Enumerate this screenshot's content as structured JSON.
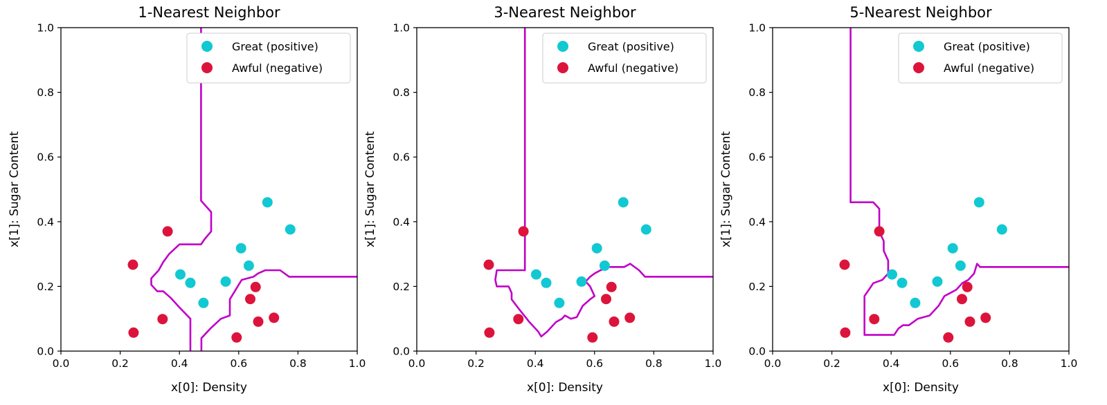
{
  "chart_data": [
    {
      "type": "scatter",
      "title": "1-Nearest Neighbor",
      "xlabel": "x[0]: Density",
      "ylabel": "x[1]: Sugar Content",
      "xlim": [
        0,
        1
      ],
      "ylim": [
        0,
        1
      ],
      "xticks": [
        "0.0",
        "0.2",
        "0.4",
        "0.6",
        "0.8",
        "1.0"
      ],
      "yticks": [
        "0.0",
        "0.2",
        "0.4",
        "0.6",
        "0.8",
        "1.0"
      ],
      "grid": false,
      "legend_position": "top-right",
      "series": [
        {
          "name": "Great (positive)",
          "color": "#12c8d2",
          "points": [
            [
              0.697,
              0.46
            ],
            [
              0.774,
              0.376
            ],
            [
              0.634,
              0.264
            ],
            [
              0.608,
              0.318
            ],
            [
              0.556,
              0.215
            ],
            [
              0.403,
              0.237
            ],
            [
              0.481,
              0.149
            ],
            [
              0.437,
              0.211
            ]
          ]
        },
        {
          "name": "Awful (negative)",
          "color": "#dc143c",
          "points": [
            [
              0.666,
              0.091
            ],
            [
              0.243,
              0.267
            ],
            [
              0.245,
              0.057
            ],
            [
              0.343,
              0.099
            ],
            [
              0.639,
              0.161
            ],
            [
              0.657,
              0.198
            ],
            [
              0.36,
              0.37
            ],
            [
              0.593,
              0.042
            ],
            [
              0.719,
              0.103
            ]
          ]
        }
      ],
      "decision_boundary": {
        "color": "#c000c8",
        "lines": [
          [
            [
              0.473,
              1.0
            ],
            [
              0.473,
              0.465
            ],
            [
              0.507,
              0.43
            ],
            [
              0.507,
              0.37
            ],
            [
              0.484,
              0.345
            ],
            [
              0.473,
              0.33
            ],
            [
              0.4,
              0.33
            ],
            [
              0.365,
              0.3
            ],
            [
              0.345,
              0.275
            ],
            [
              0.33,
              0.25
            ],
            [
              0.305,
              0.225
            ],
            [
              0.305,
              0.205
            ],
            [
              0.325,
              0.185
            ],
            [
              0.345,
              0.185
            ],
            [
              0.37,
              0.165
            ],
            [
              0.4,
              0.135
            ],
            [
              0.437,
              0.1
            ],
            [
              0.437,
              0.0
            ]
          ],
          [
            [
              0.474,
              0.0
            ],
            [
              0.474,
              0.04
            ],
            [
              0.505,
              0.07
            ],
            [
              0.54,
              0.1
            ],
            [
              0.57,
              0.11
            ],
            [
              0.57,
              0.16
            ],
            [
              0.59,
              0.19
            ],
            [
              0.61,
              0.22
            ],
            [
              0.65,
              0.23
            ],
            [
              0.665,
              0.24
            ],
            [
              0.69,
              0.25
            ],
            [
              0.74,
              0.25
            ],
            [
              0.77,
              0.23
            ],
            [
              1.0,
              0.23
            ]
          ]
        ]
      }
    },
    {
      "type": "scatter",
      "title": "3-Nearest Neighbor",
      "xlabel": "x[0]: Density",
      "ylabel": "x[1]: Sugar Content",
      "xlim": [
        0,
        1
      ],
      "ylim": [
        0,
        1
      ],
      "xticks": [
        "0.0",
        "0.2",
        "0.4",
        "0.6",
        "0.8",
        "1.0"
      ],
      "yticks": [
        "0.0",
        "0.2",
        "0.4",
        "0.6",
        "0.8",
        "1.0"
      ],
      "grid": false,
      "legend_position": "top-right",
      "series": [
        {
          "name": "Great (positive)",
          "color": "#12c8d2",
          "points": [
            [
              0.697,
              0.46
            ],
            [
              0.774,
              0.376
            ],
            [
              0.634,
              0.264
            ],
            [
              0.608,
              0.318
            ],
            [
              0.556,
              0.215
            ],
            [
              0.403,
              0.237
            ],
            [
              0.481,
              0.149
            ],
            [
              0.437,
              0.211
            ]
          ]
        },
        {
          "name": "Awful (negative)",
          "color": "#dc143c",
          "points": [
            [
              0.666,
              0.091
            ],
            [
              0.243,
              0.267
            ],
            [
              0.245,
              0.057
            ],
            [
              0.343,
              0.099
            ],
            [
              0.639,
              0.161
            ],
            [
              0.657,
              0.198
            ],
            [
              0.36,
              0.37
            ],
            [
              0.593,
              0.042
            ],
            [
              0.719,
              0.103
            ]
          ]
        }
      ],
      "decision_boundary": {
        "color": "#c000c8",
        "lines": [
          [
            [
              0.365,
              1.0
            ],
            [
              0.365,
              0.25
            ],
            [
              0.27,
              0.25
            ],
            [
              0.265,
              0.22
            ],
            [
              0.27,
              0.2
            ],
            [
              0.31,
              0.2
            ],
            [
              0.32,
              0.18
            ],
            [
              0.32,
              0.16
            ],
            [
              0.345,
              0.13
            ],
            [
              0.38,
              0.09
            ],
            [
              0.41,
              0.06
            ],
            [
              0.42,
              0.045
            ],
            [
              0.44,
              0.06
            ],
            [
              0.47,
              0.09
            ],
            [
              0.49,
              0.1
            ],
            [
              0.5,
              0.11
            ],
            [
              0.52,
              0.1
            ],
            [
              0.54,
              0.105
            ],
            [
              0.56,
              0.14
            ],
            [
              0.585,
              0.16
            ],
            [
              0.6,
              0.17
            ],
            [
              0.585,
              0.2
            ],
            [
              0.57,
              0.215
            ],
            [
              0.585,
              0.23
            ],
            [
              0.6,
              0.24
            ],
            [
              0.62,
              0.25
            ],
            [
              0.65,
              0.26
            ],
            [
              0.7,
              0.26
            ],
            [
              0.72,
              0.27
            ],
            [
              0.75,
              0.25
            ],
            [
              0.77,
              0.23
            ],
            [
              1.0,
              0.23
            ]
          ]
        ]
      }
    },
    {
      "type": "scatter",
      "title": "5-Nearest Neighbor",
      "xlabel": "x[0]: Density",
      "ylabel": "x[1]: Sugar Content",
      "xlim": [
        0,
        1
      ],
      "ylim": [
        0,
        1
      ],
      "xticks": [
        "0.0",
        "0.2",
        "0.4",
        "0.6",
        "0.8",
        "1.0"
      ],
      "yticks": [
        "0.0",
        "0.2",
        "0.4",
        "0.6",
        "0.8",
        "1.0"
      ],
      "grid": false,
      "legend_position": "top-right",
      "series": [
        {
          "name": "Great (positive)",
          "color": "#12c8d2",
          "points": [
            [
              0.697,
              0.46
            ],
            [
              0.774,
              0.376
            ],
            [
              0.634,
              0.264
            ],
            [
              0.608,
              0.318
            ],
            [
              0.556,
              0.215
            ],
            [
              0.403,
              0.237
            ],
            [
              0.481,
              0.149
            ],
            [
              0.437,
              0.211
            ]
          ]
        },
        {
          "name": "Awful (negative)",
          "color": "#dc143c",
          "points": [
            [
              0.666,
              0.091
            ],
            [
              0.243,
              0.267
            ],
            [
              0.245,
              0.057
            ],
            [
              0.343,
              0.099
            ],
            [
              0.639,
              0.161
            ],
            [
              0.657,
              0.198
            ],
            [
              0.36,
              0.37
            ],
            [
              0.593,
              0.042
            ],
            [
              0.719,
              0.103
            ]
          ]
        }
      ],
      "decision_boundary": {
        "color": "#c000c8",
        "lines": [
          [
            [
              0.263,
              1.0
            ],
            [
              0.263,
              0.46
            ],
            [
              0.34,
              0.46
            ],
            [
              0.36,
              0.44
            ],
            [
              0.36,
              0.37
            ],
            [
              0.375,
              0.34
            ],
            [
              0.375,
              0.31
            ],
            [
              0.39,
              0.28
            ],
            [
              0.39,
              0.24
            ],
            [
              0.37,
              0.22
            ],
            [
              0.34,
              0.21
            ],
            [
              0.325,
              0.19
            ],
            [
              0.31,
              0.17
            ],
            [
              0.31,
              0.05
            ],
            [
              0.41,
              0.05
            ],
            [
              0.425,
              0.07
            ],
            [
              0.44,
              0.08
            ],
            [
              0.46,
              0.08
            ],
            [
              0.49,
              0.1
            ],
            [
              0.53,
              0.11
            ],
            [
              0.56,
              0.14
            ],
            [
              0.58,
              0.17
            ],
            [
              0.6,
              0.18
            ],
            [
              0.62,
              0.19
            ],
            [
              0.64,
              0.21
            ],
            [
              0.66,
              0.22
            ],
            [
              0.68,
              0.24
            ],
            [
              0.69,
              0.27
            ],
            [
              0.7,
              0.26
            ],
            [
              1.0,
              0.26
            ]
          ]
        ]
      }
    }
  ]
}
